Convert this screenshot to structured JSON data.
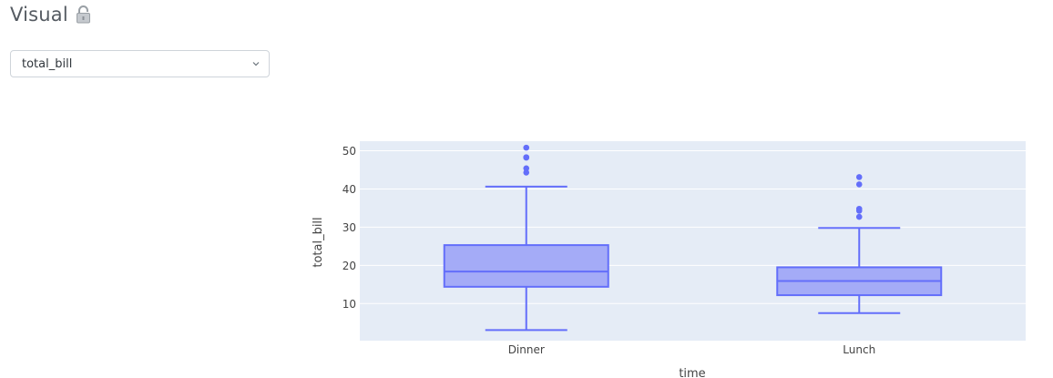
{
  "header": {
    "title": "Visual",
    "icon": "lock-icon"
  },
  "variable_select": {
    "selected": "total_bill",
    "icon": "chevron-down-icon"
  },
  "colors": {
    "plot_bg": "#e5ecf6",
    "box_fill": "#a4abf7",
    "box_line": "#636efa",
    "grid": "#ffffff",
    "tick_text": "#444444"
  },
  "chart_data": {
    "type": "box",
    "xlabel": "time",
    "ylabel": "total_bill",
    "categories": [
      "Dinner",
      "Lunch"
    ],
    "ylim": [
      0.3,
      52.5
    ],
    "yticks": [
      10,
      20,
      30,
      40,
      50
    ],
    "grid": true,
    "boxes": [
      {
        "category": "Dinner",
        "lowerfence": 3.07,
        "q1": 14.4,
        "median": 18.4,
        "q3": 25.3,
        "upperfence": 40.6,
        "outliers": [
          44.3,
          45.4,
          48.2,
          48.3,
          50.8
        ]
      },
      {
        "category": "Lunch",
        "lowerfence": 7.5,
        "q1": 12.2,
        "median": 15.9,
        "q3": 19.5,
        "upperfence": 29.8,
        "outliers": [
          32.7,
          34.3,
          34.8,
          41.2,
          43.1
        ]
      }
    ]
  }
}
